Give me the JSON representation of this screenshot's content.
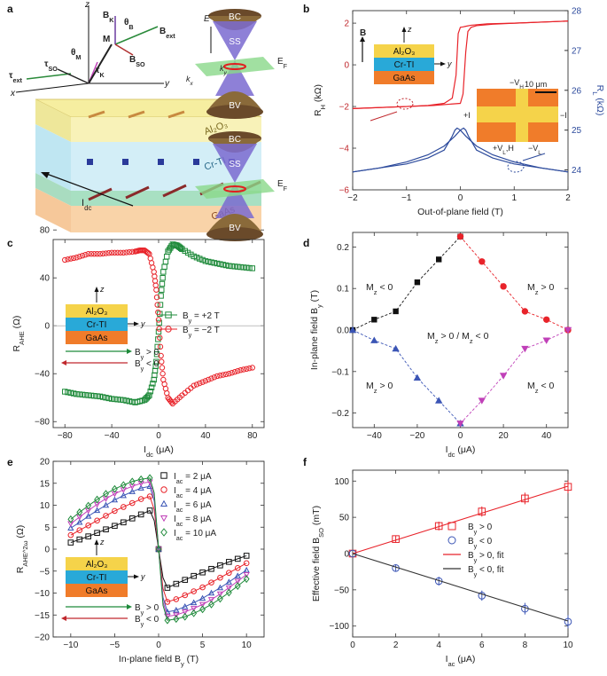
{
  "panels": {
    "a": {
      "label": "a",
      "layers": [
        "Al2O3",
        "Cr-TI",
        "GaAs"
      ],
      "vectors": [
        "B_K",
        "θ_B",
        "B_ext",
        "θ_M",
        "M",
        "B_SO",
        "τ_SO",
        "τ_ext",
        "τ_K"
      ],
      "axes": [
        "z",
        "x",
        "y"
      ],
      "current_label": "I_dc",
      "band_labels": [
        "BC",
        "SS",
        "BV",
        "E",
        "E_F",
        "k_x",
        "k_y"
      ]
    },
    "b": {
      "label": "b",
      "scale_label": "10 μm"
    },
    "c": {
      "label": "c"
    },
    "d": {
      "label": "d"
    },
    "e": {
      "label": "e"
    },
    "f": {
      "label": "f"
    }
  },
  "chart_data": [
    {
      "id": "b",
      "type": "line",
      "xlabel": "Out-of-plane field (T)",
      "ylabel_left": "R_H (kΩ)",
      "ylabel_right": "R_L (kΩ)",
      "xlim": [
        -2,
        2
      ],
      "ylim_left": [
        -6,
        2.6
      ],
      "ylim_right": [
        23.5,
        28
      ],
      "xticks": [
        -2,
        -1,
        0,
        1,
        2
      ],
      "yticks_left": [
        -6,
        -4,
        -2,
        0,
        2
      ],
      "yticks_right": [
        24,
        25,
        26,
        27,
        28
      ],
      "series": [
        {
          "name": "R_H up sweep",
          "axis": "left",
          "color": "#e8232a",
          "x": [
            -2,
            -1,
            -0.5,
            0,
            0.05,
            0.1,
            0.14,
            0.2,
            0.3,
            0.6,
            1,
            1.5,
            2
          ],
          "y": [
            -2.1,
            -2.0,
            -1.95,
            -1.85,
            -1.4,
            0.6,
            1.6,
            1.8,
            1.88,
            1.95,
            2.0,
            2.05,
            2.1
          ]
        },
        {
          "name": "R_H down sweep",
          "axis": "left",
          "color": "#e8232a",
          "x": [
            2,
            1,
            0.5,
            0.2,
            0.1,
            0.05,
            0,
            -0.04,
            -0.08,
            -0.15,
            -0.3,
            -0.6,
            -1,
            -2
          ],
          "y": [
            2.1,
            2.0,
            1.97,
            1.9,
            1.85,
            1.82,
            1.8,
            1.5,
            -0.5,
            -1.6,
            -1.85,
            -1.95,
            -2.0,
            -2.1
          ]
        },
        {
          "name": "R_L up sweep",
          "axis": "right",
          "color": "#2c4a9c",
          "x": [
            -2,
            -1.5,
            -1,
            -0.6,
            -0.3,
            -0.1,
            0,
            0.06,
            0.1,
            0.15,
            0.3,
            0.6,
            1,
            1.5,
            2
          ],
          "y": [
            23.95,
            24.05,
            24.2,
            24.38,
            24.6,
            24.85,
            25.0,
            25.05,
            25.0,
            24.85,
            24.5,
            24.3,
            24.15,
            24.05,
            23.95
          ]
        },
        {
          "name": "R_L down sweep",
          "axis": "right",
          "color": "#2c4a9c",
          "x": [
            2,
            1.5,
            1,
            0.6,
            0.3,
            0.1,
            0,
            -0.06,
            -0.1,
            -0.15,
            -0.3,
            -0.6,
            -1,
            -1.5,
            -2
          ],
          "y": [
            23.95,
            24.05,
            24.2,
            24.38,
            24.6,
            24.85,
            25.0,
            25.05,
            25.0,
            24.85,
            24.5,
            24.3,
            24.15,
            24.05,
            23.95
          ]
        }
      ],
      "inset_layers": [
        "Al2O3",
        "Cr-TI",
        "GaAs"
      ],
      "inset_field_label": "B",
      "device_labels": [
        "−V_H",
        "+I",
        "−I",
        "+V_L,H",
        "−V_L"
      ]
    },
    {
      "id": "c",
      "type": "scatter",
      "xlabel": "I_dc (μA)",
      "ylabel": "R_AHE (Ω)",
      "xlim": [
        -90,
        90
      ],
      "ylim": [
        -85,
        72
      ],
      "xticks": [
        -80,
        -40,
        0,
        40,
        80
      ],
      "yticks": [
        -80,
        -40,
        0,
        40,
        80
      ],
      "series": [
        {
          "name": "B_y = +2 T",
          "color": "#1e8a3a",
          "marker": "square",
          "x": [
            -80,
            -70,
            -60,
            -50,
            -40,
            -30,
            -20,
            -12,
            -8,
            -4,
            -2,
            0,
            2,
            4,
            8,
            12,
            16,
            20,
            30,
            40,
            50,
            60,
            70,
            80
          ],
          "y": [
            -55,
            -57,
            -58,
            -59,
            -61,
            -62,
            -64,
            -62,
            -58,
            -45,
            -30,
            -5,
            25,
            45,
            62,
            68,
            67,
            64,
            58,
            54,
            52,
            50,
            49,
            48
          ]
        },
        {
          "name": "B_y = −2 T",
          "color": "#e8232a",
          "marker": "circle",
          "x": [
            -80,
            -70,
            -60,
            -50,
            -40,
            -30,
            -20,
            -16,
            -12,
            -8,
            -4,
            -2,
            0,
            2,
            4,
            8,
            12,
            20,
            30,
            40,
            50,
            60,
            70,
            80
          ],
          "y": [
            55,
            57,
            60,
            60,
            61,
            61,
            62,
            63,
            63,
            60,
            45,
            30,
            5,
            -25,
            -45,
            -60,
            -65,
            -58,
            -50,
            -46,
            -42,
            -40,
            -37,
            -35
          ]
        }
      ],
      "legend": [
        "B_y = +2 T",
        "B_y = −2 T"
      ],
      "inset_layers": [
        "Al2O3",
        "Cr-TI",
        "GaAs"
      ],
      "inset_arrows": [
        "B_y > 0",
        "B_y < 0"
      ]
    },
    {
      "id": "d",
      "type": "scatter",
      "xlabel": "I_dc (μA)",
      "ylabel": "In-plane field B_y (T)",
      "xlim": [
        -50,
        50
      ],
      "ylim": [
        -0.235,
        0.235
      ],
      "xticks": [
        -40,
        -20,
        0,
        20,
        40
      ],
      "yticks": [
        -0.2,
        -0.1,
        0.0,
        0.1,
        0.2
      ],
      "series": [
        {
          "name": "black squares",
          "color": "#111111",
          "marker": "square",
          "x": [
            -50,
            -40,
            -30,
            -20,
            -10,
            0
          ],
          "y": [
            0.0,
            0.025,
            0.045,
            0.115,
            0.17,
            0.225
          ]
        },
        {
          "name": "red circles",
          "color": "#e8232a",
          "marker": "circle",
          "x": [
            0,
            10,
            20,
            30,
            40,
            50
          ],
          "y": [
            0.225,
            0.165,
            0.105,
            0.045,
            0.025,
            0.0
          ]
        },
        {
          "name": "blue triangles",
          "color": "#3b55b5",
          "marker": "triangle-up",
          "x": [
            -50,
            -40,
            -30,
            -20,
            -10,
            0
          ],
          "y": [
            0.0,
            -0.025,
            -0.045,
            -0.115,
            -0.17,
            -0.225
          ]
        },
        {
          "name": "magenta triangles",
          "color": "#c040b8",
          "marker": "triangle-down",
          "x": [
            0,
            10,
            20,
            30,
            40,
            50
          ],
          "y": [
            -0.225,
            -0.17,
            -0.11,
            -0.045,
            -0.025,
            0.0
          ]
        }
      ],
      "region_labels": [
        "M_z < 0",
        "M_z > 0",
        "M_z > 0 / M_z < 0",
        "M_z > 0",
        "M_z < 0"
      ]
    },
    {
      "id": "e",
      "type": "scatter",
      "xlabel": "In-plane field B_y (T)",
      "ylabel": "R_AHE^2ω (Ω)",
      "xlim": [
        -12,
        12
      ],
      "ylim": [
        -20,
        20
      ],
      "xticks": [
        -10,
        -5,
        0,
        5,
        10
      ],
      "yticks": [
        -20,
        -15,
        -10,
        -5,
        0,
        5,
        10,
        15,
        20
      ],
      "x": [
        -10,
        -9,
        -8,
        -7,
        -6,
        -5,
        -4,
        -3,
        -2,
        -1,
        -0.5,
        0,
        0.5,
        1,
        2,
        3,
        4,
        5,
        6,
        7,
        8,
        9,
        10
      ],
      "series": [
        {
          "name": "I_ac = 2 μA",
          "color": "#111111",
          "marker": "square",
          "values": [
            1.5,
            2.2,
            2.9,
            3.7,
            4.5,
            5.3,
            6.1,
            7.0,
            7.9,
            8.8,
            6.5,
            0,
            -6.5,
            -8.8,
            -7.9,
            -7.0,
            -6.1,
            -5.3,
            -4.5,
            -3.7,
            -2.9,
            -2.2,
            -1.5
          ]
        },
        {
          "name": "I_ac = 4 μA",
          "color": "#e8232a",
          "marker": "circle",
          "values": [
            3.2,
            4.3,
            5.4,
            6.5,
            7.6,
            8.7,
            9.6,
            10.5,
            11.4,
            12.0,
            9.0,
            0,
            -9.0,
            -12.0,
            -11.4,
            -10.5,
            -9.6,
            -8.7,
            -7.6,
            -6.5,
            -5.4,
            -4.3,
            -3.2
          ]
        },
        {
          "name": "I_ac = 6 μA",
          "color": "#3b55b5",
          "marker": "triangle-up",
          "values": [
            4.8,
            6.1,
            7.5,
            8.8,
            10.0,
            11.2,
            12.2,
            13.1,
            13.9,
            14.3,
            11.0,
            0,
            -11.0,
            -14.3,
            -13.9,
            -13.1,
            -12.2,
            -11.2,
            -10.0,
            -8.8,
            -7.5,
            -6.1,
            -4.8
          ]
        },
        {
          "name": "I_ac = 8 μA",
          "color": "#c040b8",
          "marker": "triangle-down",
          "values": [
            5.8,
            7.3,
            8.8,
            10.2,
            11.5,
            12.6,
            13.5,
            14.3,
            15.0,
            15.3,
            12.0,
            0,
            -12.0,
            -15.3,
            -15.0,
            -14.3,
            -13.5,
            -12.6,
            -11.5,
            -10.2,
            -8.8,
            -7.3,
            -5.8
          ]
        },
        {
          "name": "I_ac = 10 μA",
          "color": "#1e8a3a",
          "marker": "diamond",
          "values": [
            6.8,
            8.4,
            9.9,
            11.3,
            12.6,
            13.7,
            14.6,
            15.4,
            15.9,
            16.2,
            12.8,
            0,
            -12.8,
            -16.2,
            -15.9,
            -15.4,
            -14.6,
            -13.7,
            -12.6,
            -11.3,
            -9.9,
            -8.4,
            -6.8
          ]
        }
      ],
      "legend": [
        "I_ac = 2 μA",
        "I_ac = 4 μA",
        "I_ac = 6 μA",
        "I_ac = 8 μA",
        "I_ac = 10 μA"
      ],
      "inset_layers": [
        "Al2O3",
        "Cr-TI",
        "GaAs"
      ],
      "inset_arrows": [
        "B_y > 0",
        "B_y < 0"
      ]
    },
    {
      "id": "f",
      "type": "scatter",
      "xlabel": "I_ac (μA)",
      "ylabel": "Effective field B_SO (mT)",
      "xlim": [
        0,
        10
      ],
      "ylim": [
        -115,
        115
      ],
      "xticks": [
        0,
        2,
        4,
        6,
        8,
        10
      ],
      "yticks": [
        -100,
        -50,
        0,
        50,
        100
      ],
      "series": [
        {
          "name": "B_y > 0",
          "color": "#e8232a",
          "marker": "square",
          "x": [
            0,
            2,
            4,
            6,
            8,
            10
          ],
          "y": [
            0,
            20,
            38,
            58,
            76,
            92
          ],
          "err": [
            0,
            5,
            6,
            7,
            8,
            9
          ]
        },
        {
          "name": "B_y < 0",
          "color": "#3b55b5",
          "marker": "circle",
          "x": [
            0,
            2,
            4,
            6,
            8,
            10
          ],
          "y": [
            0,
            -20,
            -38,
            -58,
            -76,
            -94
          ],
          "err": [
            0,
            5,
            6,
            7,
            8,
            9
          ]
        },
        {
          "name": "B_y > 0, fit",
          "color": "#e8232a",
          "line": true,
          "x": [
            0,
            10
          ],
          "y": [
            0,
            93
          ]
        },
        {
          "name": "B_y < 0, fit",
          "color": "#333333",
          "line": true,
          "x": [
            0,
            10
          ],
          "y": [
            0,
            -93
          ]
        }
      ],
      "legend": [
        "B_y > 0",
        "B_y < 0",
        "B_y > 0, fit",
        "B_y < 0, fit"
      ]
    }
  ]
}
